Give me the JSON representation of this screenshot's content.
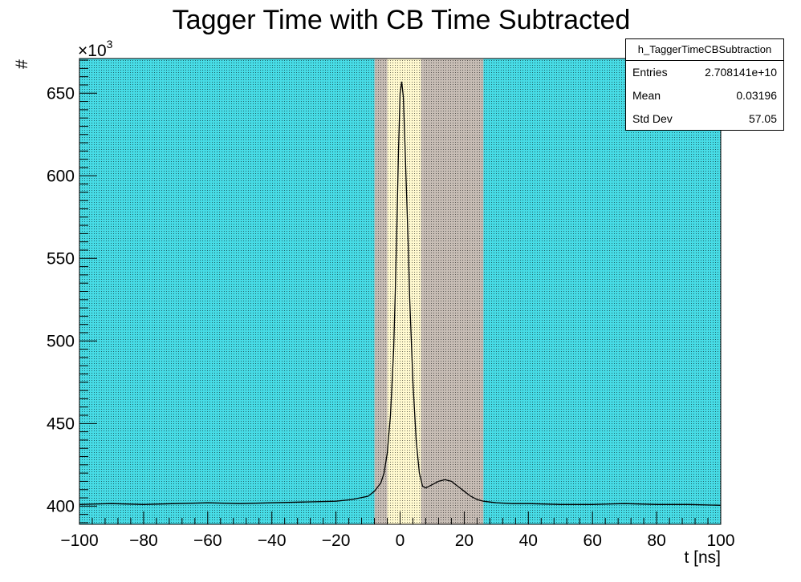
{
  "chart_data": {
    "type": "line",
    "title": "Tagger Time with CB Time Subtracted",
    "xlabel": "t [ns]",
    "ylabel": "#",
    "y_multiplier_label": "×10",
    "y_multiplier_exp": "3",
    "xlim": [
      -100,
      100
    ],
    "ylim": [
      389,
      671
    ],
    "x_ticks": [
      -100,
      -80,
      -60,
      -40,
      -20,
      0,
      20,
      40,
      60,
      80,
      100
    ],
    "x_tick_labels": [
      "−100",
      "−80",
      "−60",
      "−40",
      "−20",
      "0",
      "20",
      "40",
      "60",
      "80",
      "100"
    ],
    "y_ticks": [
      400,
      450,
      500,
      550,
      600,
      650
    ],
    "y_tick_labels": [
      "400",
      "450",
      "500",
      "550",
      "600",
      "650"
    ],
    "grid": false,
    "legend": "none",
    "series": [
      {
        "x": [
          -100,
          -90,
          -80,
          -70,
          -60,
          -50,
          -40,
          -30,
          -20,
          -15,
          -10,
          -8,
          -6,
          -5,
          -4,
          -3,
          -2,
          -1.5,
          -1,
          -0.5,
          0,
          0.5,
          1,
          1.5,
          2,
          2.5,
          3,
          4,
          5,
          6,
          7,
          8,
          10,
          12,
          14,
          16,
          18,
          20,
          22,
          24,
          26,
          28,
          30,
          35,
          40,
          50,
          60,
          70,
          80,
          90,
          100
        ],
        "values": [
          401,
          401.5,
          401,
          401.5,
          402,
          401.5,
          402,
          402.5,
          403,
          404,
          406,
          409,
          414,
          420,
          432,
          455,
          495,
          530,
          570,
          615,
          650,
          657,
          648,
          620,
          590,
          560,
          525,
          475,
          440,
          420,
          412,
          411,
          413,
          415,
          416,
          415,
          412,
          409,
          406,
          404,
          403,
          402.5,
          402,
          401.5,
          401.5,
          401,
          401,
          401.5,
          401,
          401,
          400.5
        ]
      }
    ],
    "bands": [
      {
        "from": -8,
        "to": 26,
        "color": "#b1a399"
      },
      {
        "from": -4,
        "to": 6.5,
        "color": "#fff7bd"
      }
    ],
    "colors": {
      "plot_fill": "#00cedd",
      "frame": "#000000",
      "line": "#000000"
    }
  },
  "stats": {
    "name": "h_TaggerTimeCBSubtraction",
    "rows": [
      {
        "label": "Entries",
        "value": "2.708141e+10"
      },
      {
        "label": "Mean",
        "value": "0.03196"
      },
      {
        "label": "Std Dev",
        "value": "57.05"
      }
    ]
  }
}
